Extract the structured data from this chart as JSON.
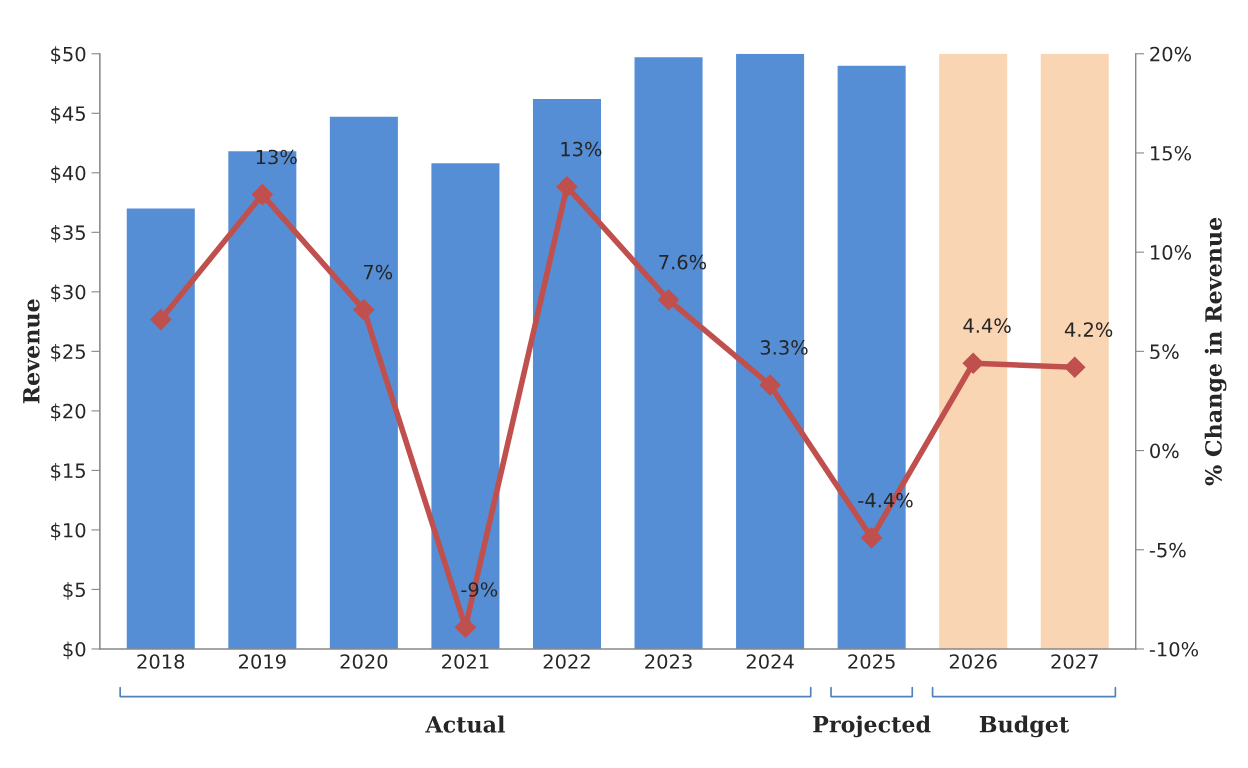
{
  "chart_data": {
    "type": "bar",
    "categories": [
      "2018",
      "2019",
      "2020",
      "2021",
      "2022",
      "2023",
      "2024",
      "2025",
      "2026",
      "2027"
    ],
    "ylabel": "Revenue",
    "y2label": "% Change in Revenue",
    "ylim": [
      0,
      50
    ],
    "yticks": [
      {
        "value": 0,
        "label": "$0"
      },
      {
        "value": 5,
        "label": "$5"
      },
      {
        "value": 10,
        "label": "$10"
      },
      {
        "value": 15,
        "label": "$15"
      },
      {
        "value": 20,
        "label": "$20"
      },
      {
        "value": 25,
        "label": "$25"
      },
      {
        "value": 30,
        "label": "$30"
      },
      {
        "value": 35,
        "label": "$35"
      },
      {
        "value": 40,
        "label": "$40"
      },
      {
        "value": 45,
        "label": "$45"
      },
      {
        "value": 50,
        "label": "$50"
      }
    ],
    "y2lim": [
      -10,
      20
    ],
    "y2ticks": [
      {
        "value": -10,
        "label": "-10%"
      },
      {
        "value": -5,
        "label": "-5%"
      },
      {
        "value": 0,
        "label": "0%"
      },
      {
        "value": 5,
        "label": "5%"
      },
      {
        "value": 10,
        "label": "10%"
      },
      {
        "value": 15,
        "label": "15%"
      },
      {
        "value": 20,
        "label": "20%"
      }
    ],
    "series": [
      {
        "colors": [
          "#558ed5",
          "#558ed5",
          "#558ed5",
          "#558ed5",
          "#558ed5",
          "#558ed5",
          "#558ed5",
          "#558ed5",
          "#fad5b4",
          "#fad5b4"
        ],
        "values": [
          37.0,
          41.8,
          44.7,
          40.8,
          46.2,
          49.7,
          50.0,
          49.0,
          50.0,
          50.0
        ]
      },
      {
        "type": "line",
        "axis": "y2",
        "color": "#c0504d",
        "marker": "diamond",
        "values": [
          6.6,
          12.9,
          7.1,
          -8.9,
          13.3,
          7.6,
          3.3,
          -4.4,
          4.4,
          4.2
        ],
        "value_labels": [
          null,
          "13%",
          "7%",
          "-9%",
          "13%",
          "7.6%",
          "3.3%",
          "-4.4%",
          "4.4%",
          "4.2%"
        ]
      }
    ],
    "annotations": [
      "Actual",
      "Projected",
      "Budget"
    ],
    "grid": false,
    "legend": false
  }
}
